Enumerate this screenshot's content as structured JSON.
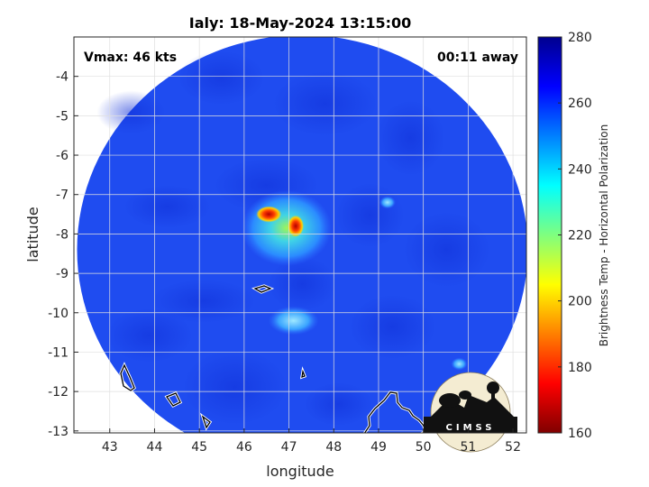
{
  "chart_data": {
    "type": "heatmap",
    "title": "Ialy: 18-May-2024 13:15:00",
    "xlabel": "longitude",
    "ylabel": "latitude",
    "xlim": [
      42.2,
      52.3
    ],
    "ylim": [
      -13.05,
      -3.0
    ],
    "x_ticks": [
      43,
      44,
      45,
      46,
      47,
      48,
      49,
      50,
      51,
      52
    ],
    "y_ticks": [
      -4,
      -5,
      -6,
      -7,
      -8,
      -9,
      -10,
      -11,
      -12,
      -13
    ],
    "grid": true,
    "annotations": {
      "vmax": "Vmax: 46 kts",
      "time_away": "00:11 away"
    },
    "colorbar": {
      "label": "Brightness Temp - Horizontal Polarization",
      "min": 160,
      "max": 280,
      "ticks": [
        160,
        180,
        200,
        220,
        240,
        260,
        280
      ],
      "colormap": "jet"
    },
    "swath": {
      "center_lon": 47.3,
      "center_lat": -8.4,
      "background_value": 262
    },
    "features": [
      {
        "name": "storm-core",
        "lon": 46.95,
        "lat": -7.85,
        "value": 232
      },
      {
        "name": "cold-spot-1",
        "lon": 46.55,
        "lat": -7.5,
        "value": 170
      },
      {
        "name": "cold-spot-2",
        "lon": 47.15,
        "lat": -7.8,
        "value": 185
      },
      {
        "name": "warm-band",
        "lon": 47.1,
        "lat": -10.2,
        "value": 240
      },
      {
        "name": "cell-east",
        "lon": 49.2,
        "lat": -7.2,
        "value": 238
      },
      {
        "name": "cell-southeast",
        "lon": 50.8,
        "lat": -11.3,
        "value": 236
      }
    ],
    "logo_text": "CIMSS"
  },
  "colors": {
    "background": "#ffffff",
    "axes": "#262626",
    "grid": "#dfdfdf"
  }
}
